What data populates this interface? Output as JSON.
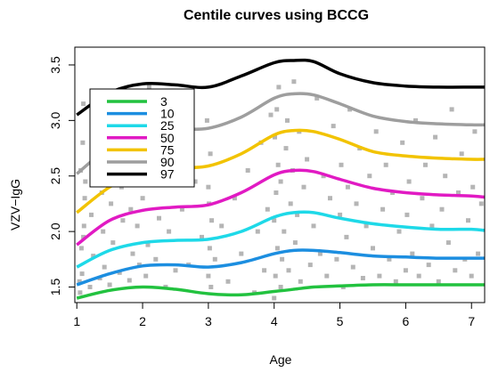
{
  "chart_data": {
    "type": "line",
    "title": "Centile curves using BCCG",
    "xlabel": "Age",
    "ylabel": "VZV−IgG",
    "xlim": [
      0.97,
      7.2
    ],
    "ylim": [
      1.36,
      3.66
    ],
    "xticks": [
      "1",
      "2",
      "3",
      "4",
      "5",
      "6",
      "7"
    ],
    "yticks": [
      "1.5",
      "2.0",
      "2.5",
      "3.0",
      "3.5"
    ],
    "grid": false,
    "legend_position": "top-left",
    "x": [
      1.0,
      1.5,
      2.0,
      2.5,
      3.0,
      3.5,
      4.0,
      4.3,
      4.6,
      5.0,
      5.5,
      6.0,
      6.5,
      7.0,
      7.2
    ],
    "series": [
      {
        "name": "3",
        "color": "#22c23f",
        "values": [
          1.4,
          1.47,
          1.5,
          1.48,
          1.44,
          1.43,
          1.46,
          1.48,
          1.5,
          1.51,
          1.52,
          1.52,
          1.52,
          1.52,
          1.52
        ]
      },
      {
        "name": "10",
        "color": "#1c8ee0",
        "values": [
          1.52,
          1.62,
          1.69,
          1.7,
          1.68,
          1.72,
          1.8,
          1.83,
          1.83,
          1.81,
          1.78,
          1.77,
          1.76,
          1.76,
          1.76
        ]
      },
      {
        "name": "25",
        "color": "#1ed9e8",
        "values": [
          1.68,
          1.83,
          1.9,
          1.92,
          1.93,
          2.0,
          2.13,
          2.17,
          2.17,
          2.12,
          2.07,
          2.04,
          2.02,
          2.02,
          2.01
        ]
      },
      {
        "name": "50",
        "color": "#e11ac3",
        "values": [
          1.88,
          2.1,
          2.19,
          2.22,
          2.24,
          2.35,
          2.51,
          2.55,
          2.54,
          2.47,
          2.39,
          2.35,
          2.33,
          2.32,
          2.31
        ]
      },
      {
        "name": "75",
        "color": "#f2c300",
        "values": [
          2.17,
          2.4,
          2.54,
          2.57,
          2.59,
          2.7,
          2.87,
          2.91,
          2.9,
          2.83,
          2.72,
          2.68,
          2.66,
          2.65,
          2.65
        ]
      },
      {
        "name": "90",
        "color": "#9e9e9e",
        "values": [
          2.52,
          2.76,
          2.89,
          2.92,
          2.93,
          3.03,
          3.2,
          3.24,
          3.23,
          3.15,
          3.04,
          2.99,
          2.97,
          2.96,
          2.96
        ]
      },
      {
        "name": "97",
        "color": "#000000",
        "values": [
          3.05,
          3.25,
          3.33,
          3.32,
          3.3,
          3.4,
          3.52,
          3.54,
          3.53,
          3.42,
          3.34,
          3.31,
          3.3,
          3.3,
          3.3
        ]
      }
    ],
    "scatter_color": "#b5b5b5",
    "scatter_points": [
      [
        1.05,
        1.45
      ],
      [
        1.08,
        1.62
      ],
      [
        1.1,
        1.95
      ],
      [
        1.12,
        2.3
      ],
      [
        1.06,
        2.55
      ],
      [
        1.09,
        2.8
      ],
      [
        1.1,
        3.15
      ],
      [
        1.07,
        1.85
      ],
      [
        1.11,
        2.05
      ],
      [
        1.04,
        1.55
      ],
      [
        1.13,
        2.45
      ],
      [
        1.2,
        1.5
      ],
      [
        1.25,
        1.78
      ],
      [
        1.22,
        2.15
      ],
      [
        1.3,
        2.6
      ],
      [
        1.28,
        3.1
      ],
      [
        1.35,
        1.58
      ],
      [
        1.4,
        2.0
      ],
      [
        1.38,
        2.35
      ],
      [
        1.45,
        2.85
      ],
      [
        1.42,
        1.68
      ],
      [
        1.5,
        1.52
      ],
      [
        1.55,
        1.9
      ],
      [
        1.52,
        2.25
      ],
      [
        1.6,
        2.7
      ],
      [
        1.58,
        3.2
      ],
      [
        1.65,
        1.63
      ],
      [
        1.7,
        2.1
      ],
      [
        1.68,
        2.4
      ],
      [
        1.75,
        2.95
      ],
      [
        1.8,
        1.56
      ],
      [
        1.85,
        1.8
      ],
      [
        1.82,
        2.2
      ],
      [
        1.88,
        2.5
      ],
      [
        1.95,
        1.7
      ],
      [
        1.92,
        2.05
      ],
      [
        2.0,
        2.3
      ],
      [
        2.02,
        2.65
      ],
      [
        2.05,
        1.6
      ],
      [
        1.98,
        2.9
      ],
      [
        2.1,
        3.3
      ],
      [
        2.08,
        1.88
      ],
      [
        2.12,
        2.48
      ],
      [
        2.15,
        3.15
      ],
      [
        2.2,
        1.75
      ],
      [
        2.25,
        2.12
      ],
      [
        2.3,
        2.6
      ],
      [
        2.35,
        1.5
      ],
      [
        2.4,
        2.0
      ],
      [
        2.45,
        2.85
      ],
      [
        2.5,
        1.65
      ],
      [
        2.6,
        2.2
      ],
      [
        2.7,
        1.7
      ],
      [
        2.8,
        2.45
      ],
      [
        2.9,
        1.95
      ],
      [
        3.0,
        1.6
      ],
      [
        3.02,
        1.85
      ],
      [
        3.05,
        2.1
      ],
      [
        3.0,
        2.4
      ],
      [
        3.03,
        2.7
      ],
      [
        2.98,
        3.0
      ],
      [
        3.04,
        1.5
      ],
      [
        3.01,
        2.25
      ],
      [
        3.1,
        1.75
      ],
      [
        3.2,
        2.05
      ],
      [
        3.3,
        1.55
      ],
      [
        3.4,
        2.3
      ],
      [
        3.5,
        1.8
      ],
      [
        3.6,
        2.55
      ],
      [
        3.7,
        1.45
      ],
      [
        3.75,
        2.0
      ],
      [
        3.8,
        2.8
      ],
      [
        3.85,
        1.65
      ],
      [
        3.9,
        2.2
      ],
      [
        3.95,
        3.05
      ],
      [
        4.0,
        1.4
      ],
      [
        4.02,
        1.6
      ],
      [
        4.05,
        1.85
      ],
      [
        4.0,
        2.1
      ],
      [
        4.03,
        2.35
      ],
      [
        4.06,
        2.6
      ],
      [
        4.01,
        2.85
      ],
      [
        4.04,
        3.1
      ],
      [
        4.07,
        3.3
      ],
      [
        4.1,
        1.5
      ],
      [
        4.12,
        1.75
      ],
      [
        4.15,
        2.0
      ],
      [
        4.1,
        2.45
      ],
      [
        4.18,
        2.75
      ],
      [
        4.2,
        3.0
      ],
      [
        4.22,
        1.65
      ],
      [
        4.25,
        2.25
      ],
      [
        4.28,
        2.55
      ],
      [
        4.3,
        3.35
      ],
      [
        4.32,
        1.9
      ],
      [
        4.35,
        2.15
      ],
      [
        4.38,
        2.9
      ],
      [
        4.4,
        1.55
      ],
      [
        4.45,
        2.4
      ],
      [
        4.5,
        2.65
      ],
      [
        4.55,
        1.7
      ],
      [
        4.6,
        2.05
      ],
      [
        4.65,
        3.2
      ],
      [
        4.7,
        1.8
      ],
      [
        4.75,
        2.5
      ],
      [
        4.8,
        1.6
      ],
      [
        4.85,
        2.3
      ],
      [
        4.9,
        2.95
      ],
      [
        4.95,
        1.75
      ],
      [
        5.0,
        2.15
      ],
      [
        5.02,
        2.6
      ],
      [
        5.05,
        1.5
      ],
      [
        5.1,
        1.95
      ],
      [
        5.12,
        2.4
      ],
      [
        5.15,
        3.1
      ],
      [
        5.2,
        1.68
      ],
      [
        5.25,
        2.25
      ],
      [
        5.3,
        2.75
      ],
      [
        5.35,
        1.58
      ],
      [
        5.4,
        2.05
      ],
      [
        5.45,
        2.5
      ],
      [
        5.5,
        1.85
      ],
      [
        5.55,
        2.9
      ],
      [
        5.6,
        1.6
      ],
      [
        5.65,
        2.2
      ],
      [
        5.7,
        2.6
      ],
      [
        5.75,
        1.75
      ],
      [
        5.8,
        2.35
      ],
      [
        5.85,
        1.55
      ],
      [
        5.9,
        2.0
      ],
      [
        5.95,
        2.8
      ],
      [
        6.0,
        1.65
      ],
      [
        6.02,
        2.15
      ],
      [
        6.05,
        2.45
      ],
      [
        6.1,
        1.8
      ],
      [
        6.15,
        3.0
      ],
      [
        6.2,
        1.6
      ],
      [
        6.25,
        2.3
      ],
      [
        6.3,
        2.6
      ],
      [
        6.35,
        1.7
      ],
      [
        6.4,
        2.05
      ],
      [
        6.45,
        2.85
      ],
      [
        6.5,
        1.55
      ],
      [
        6.55,
        2.2
      ],
      [
        6.6,
        2.5
      ],
      [
        6.65,
        1.9
      ],
      [
        6.7,
        3.1
      ],
      [
        6.75,
        1.65
      ],
      [
        6.8,
        2.35
      ],
      [
        6.85,
        2.7
      ],
      [
        6.9,
        1.75
      ],
      [
        6.95,
        2.1
      ],
      [
        7.0,
        1.6
      ],
      [
        7.02,
        2.4
      ],
      [
        7.05,
        2.9
      ],
      [
        7.1,
        1.8
      ],
      [
        7.15,
        2.25
      ]
    ]
  }
}
